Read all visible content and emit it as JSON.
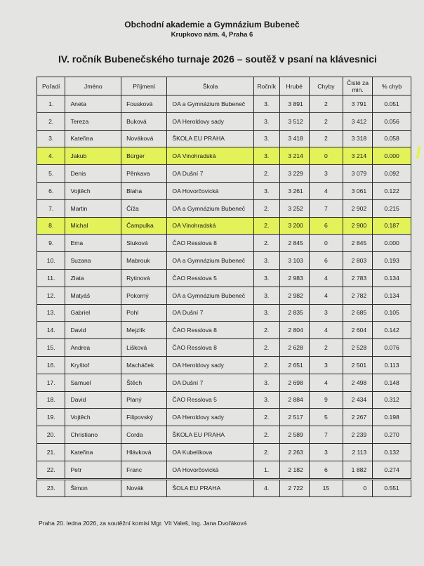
{
  "header": {
    "organization": "Obchodní akademie a Gymnázium Bubeneč",
    "address": "Krupkovo nám. 4, Praha 6",
    "title": "IV. ročník Bubenečského turnaje 2026 – soutěž v psaní na klávesnici"
  },
  "table": {
    "columns": [
      "Pořadí",
      "Jméno",
      "Příjmení",
      "Škola",
      "Ročník",
      "Hrubé",
      "Chyby",
      "Čisté za min.",
      "% chyb"
    ],
    "highlight_color": "#e4f25a",
    "rows": [
      {
        "rank": "1.",
        "first": "Aneta",
        "last": "Fousková",
        "school": "OA a Gymnázium Bubeneč",
        "year": "3.",
        "gross": "3 891",
        "errors": "2",
        "net": "3 791",
        "pct": "0.051",
        "highlight": false
      },
      {
        "rank": "2.",
        "first": "Tereza",
        "last": "Buková",
        "school": "OA Heroldovy sady",
        "year": "3.",
        "gross": "3 512",
        "errors": "2",
        "net": "3 412",
        "pct": "0.056",
        "highlight": false
      },
      {
        "rank": "3.",
        "first": "Kateřina",
        "last": "Nováková",
        "school": "ŠKOLA EU PRAHA",
        "year": "3.",
        "gross": "3 418",
        "errors": "2",
        "net": "3 318",
        "pct": "0.058",
        "highlight": false
      },
      {
        "rank": "4.",
        "first": "Jakub",
        "last": "Bürger",
        "school": "OA Vinohradská",
        "year": "3.",
        "gross": "3 214",
        "errors": "0",
        "net": "3 214",
        "pct": "0.000",
        "highlight": true
      },
      {
        "rank": "5.",
        "first": "Denis",
        "last": "Pěnkava",
        "school": "OA Dušní 7",
        "year": "2.",
        "gross": "3 229",
        "errors": "3",
        "net": "3 079",
        "pct": "0.092",
        "highlight": false
      },
      {
        "rank": "6.",
        "first": "Vojtěch",
        "last": "Blaha",
        "school": "OA Hovorčovická",
        "year": "3.",
        "gross": "3 261",
        "errors": "4",
        "net": "3 061",
        "pct": "0.122",
        "highlight": false
      },
      {
        "rank": "7.",
        "first": "Martin",
        "last": "Číža",
        "school": "OA a Gymnázium Bubeneč",
        "year": "2.",
        "gross": "3 252",
        "errors": "7",
        "net": "2 902",
        "pct": "0.215",
        "highlight": false
      },
      {
        "rank": "8.",
        "first": "Michal",
        "last": "Čampulka",
        "school": "OA Vinohradská",
        "year": "2.",
        "gross": "3 200",
        "errors": "6",
        "net": "2 900",
        "pct": "0.187",
        "highlight": true
      },
      {
        "rank": "9.",
        "first": "Ema",
        "last": "Sluková",
        "school": "ČAO Resslova 8",
        "year": "2.",
        "gross": "2 845",
        "errors": "0",
        "net": "2 845",
        "pct": "0.000",
        "highlight": false
      },
      {
        "rank": "10.",
        "first": "Suzana",
        "last": "Mabrouk",
        "school": "OA a Gymnázium Bubeneč",
        "year": "3.",
        "gross": "3 103",
        "errors": "6",
        "net": "2 803",
        "pct": "0.193",
        "highlight": false
      },
      {
        "rank": "11.",
        "first": "Zlata",
        "last": "Rytinová",
        "school": "ČAO Resslova 5",
        "year": "3.",
        "gross": "2 983",
        "errors": "4",
        "net": "2 783",
        "pct": "0.134",
        "highlight": false
      },
      {
        "rank": "12.",
        "first": "Matyáš",
        "last": "Pokorný",
        "school": "OA a Gymnázium Bubeneč",
        "year": "3.",
        "gross": "2 982",
        "errors": "4",
        "net": "2 782",
        "pct": "0.134",
        "highlight": false
      },
      {
        "rank": "13.",
        "first": "Gabriel",
        "last": "Pohl",
        "school": "OA Dušní 7",
        "year": "3.",
        "gross": "2 835",
        "errors": "3",
        "net": "2 685",
        "pct": "0.105",
        "highlight": false
      },
      {
        "rank": "14.",
        "first": "David",
        "last": "Mejzlík",
        "school": "ČAO Resslova 8",
        "year": "2.",
        "gross": "2 804",
        "errors": "4",
        "net": "2 604",
        "pct": "0.142",
        "highlight": false
      },
      {
        "rank": "15.",
        "first": "Andrea",
        "last": "Lišková",
        "school": "ČAO Resslova 8",
        "year": "2.",
        "gross": "2 628",
        "errors": "2",
        "net": "2 528",
        "pct": "0.076",
        "highlight": false
      },
      {
        "rank": "16.",
        "first": "Kryštof",
        "last": "Macháček",
        "school": "OA Heroldovy sady",
        "year": "2.",
        "gross": "2 651",
        "errors": "3",
        "net": "2 501",
        "pct": "0.113",
        "highlight": false
      },
      {
        "rank": "17.",
        "first": "Samuel",
        "last": "Štěch",
        "school": "OA Dušní 7",
        "year": "3.",
        "gross": "2 698",
        "errors": "4",
        "net": "2 498",
        "pct": "0.148",
        "highlight": false
      },
      {
        "rank": "18.",
        "first": "David",
        "last": "Planý",
        "school": "ČAO Resslova 5",
        "year": "3.",
        "gross": "2 884",
        "errors": "9",
        "net": "2 434",
        "pct": "0.312",
        "highlight": false
      },
      {
        "rank": "19.",
        "first": "Vojtěch",
        "last": "Filipovský",
        "school": "OA Heroldovy sady",
        "year": "2.",
        "gross": "2 517",
        "errors": "5",
        "net": "2 267",
        "pct": "0.198",
        "highlight": false
      },
      {
        "rank": "20.",
        "first": "Christiano",
        "last": "Corda",
        "school": "ŠKOLA EU PRAHA",
        "year": "2.",
        "gross": "2 589",
        "errors": "7",
        "net": "2 239",
        "pct": "0.270",
        "highlight": false
      },
      {
        "rank": "21.",
        "first": "Kateřina",
        "last": "Hlávková",
        "school": "OA Kubelíkova",
        "year": "2.",
        "gross": "2 263",
        "errors": "3",
        "net": "2 113",
        "pct": "0.132",
        "highlight": false
      },
      {
        "rank": "22.",
        "first": "Petr",
        "last": "Franc",
        "school": "OA Hovorčovická",
        "year": "1.",
        "gross": "2 182",
        "errors": "6",
        "net": "1 882",
        "pct": "0.274",
        "highlight": false
      },
      {
        "rank": "23.",
        "first": "Šimon",
        "last": "Novák",
        "school": "ŠOLA EU PRAHA",
        "year": "4.",
        "gross": "2 722",
        "errors": "15",
        "net": "0",
        "pct": "0.551",
        "highlight": false
      }
    ]
  },
  "footer": "Praha 20. ledna 2026, za soutěžní komisi Mgr. Vít Valeš, Ing. Jana Dvořáková"
}
